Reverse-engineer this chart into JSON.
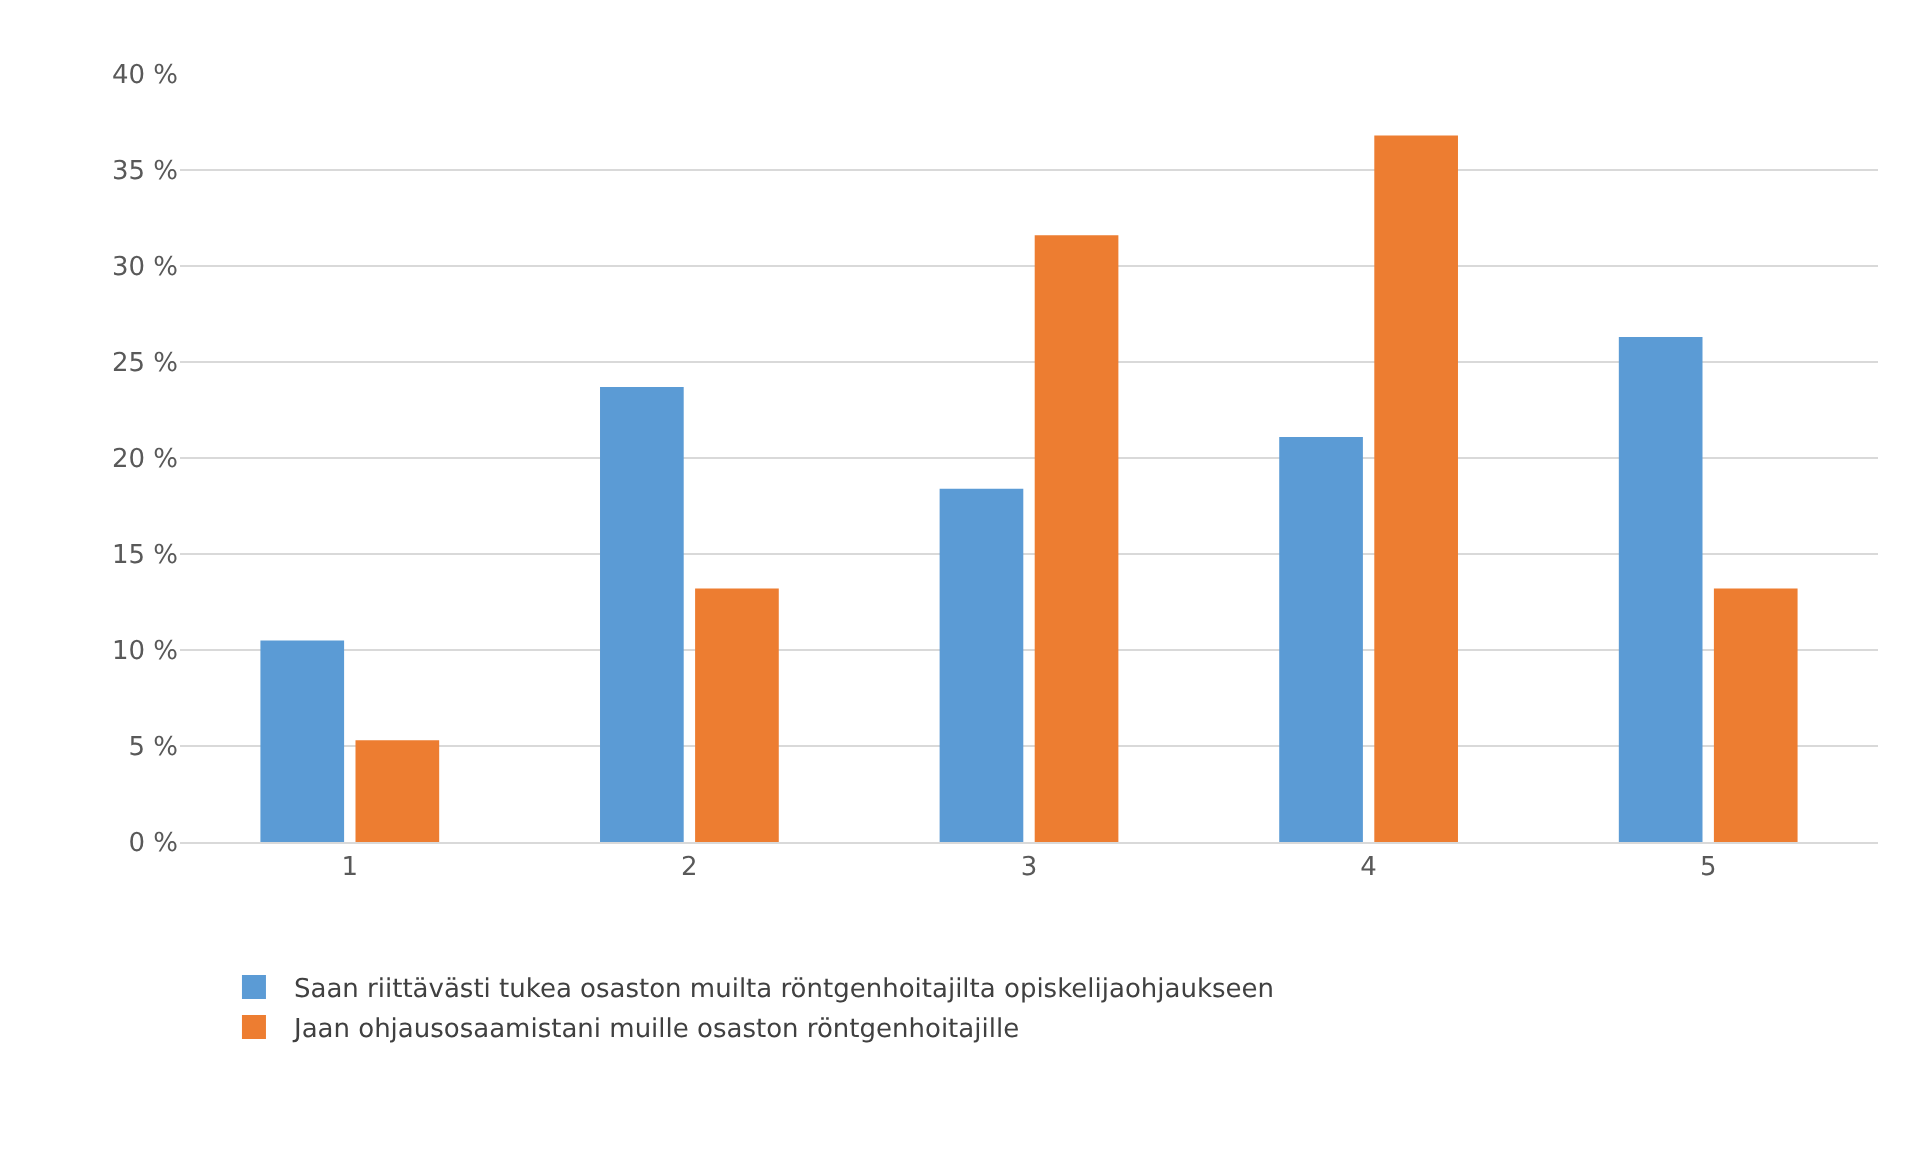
{
  "chart_data": {
    "type": "bar",
    "categories": [
      "1",
      "2",
      "3",
      "4",
      "5"
    ],
    "series": [
      {
        "name": "Saan riittävästi tukea osaston muilta röntgenhoitajilta opiskelijaohjaukseen",
        "color": "#5b9bd5",
        "values": [
          10.5,
          23.7,
          18.4,
          21.1,
          26.3
        ]
      },
      {
        "name": "Jaan ohjausosaamistani muille osaston röntgenhoitajille",
        "color": "#ed7d31",
        "values": [
          5.3,
          13.2,
          31.6,
          36.8,
          13.2
        ]
      }
    ],
    "ylim": [
      0,
      40
    ],
    "yticks": [
      {
        "value": 0,
        "label": "0 %"
      },
      {
        "value": 5,
        "label": "5 %"
      },
      {
        "value": 10,
        "label": "10 %"
      },
      {
        "value": 15,
        "label": "15 %"
      },
      {
        "value": 20,
        "label": "20 %"
      },
      {
        "value": 25,
        "label": "25 %"
      },
      {
        "value": 30,
        "label": "30 %"
      },
      {
        "value": 35,
        "label": "35 %"
      },
      {
        "value": 40,
        "label": "40 %"
      }
    ],
    "grid": "y",
    "legend": "bottom"
  }
}
